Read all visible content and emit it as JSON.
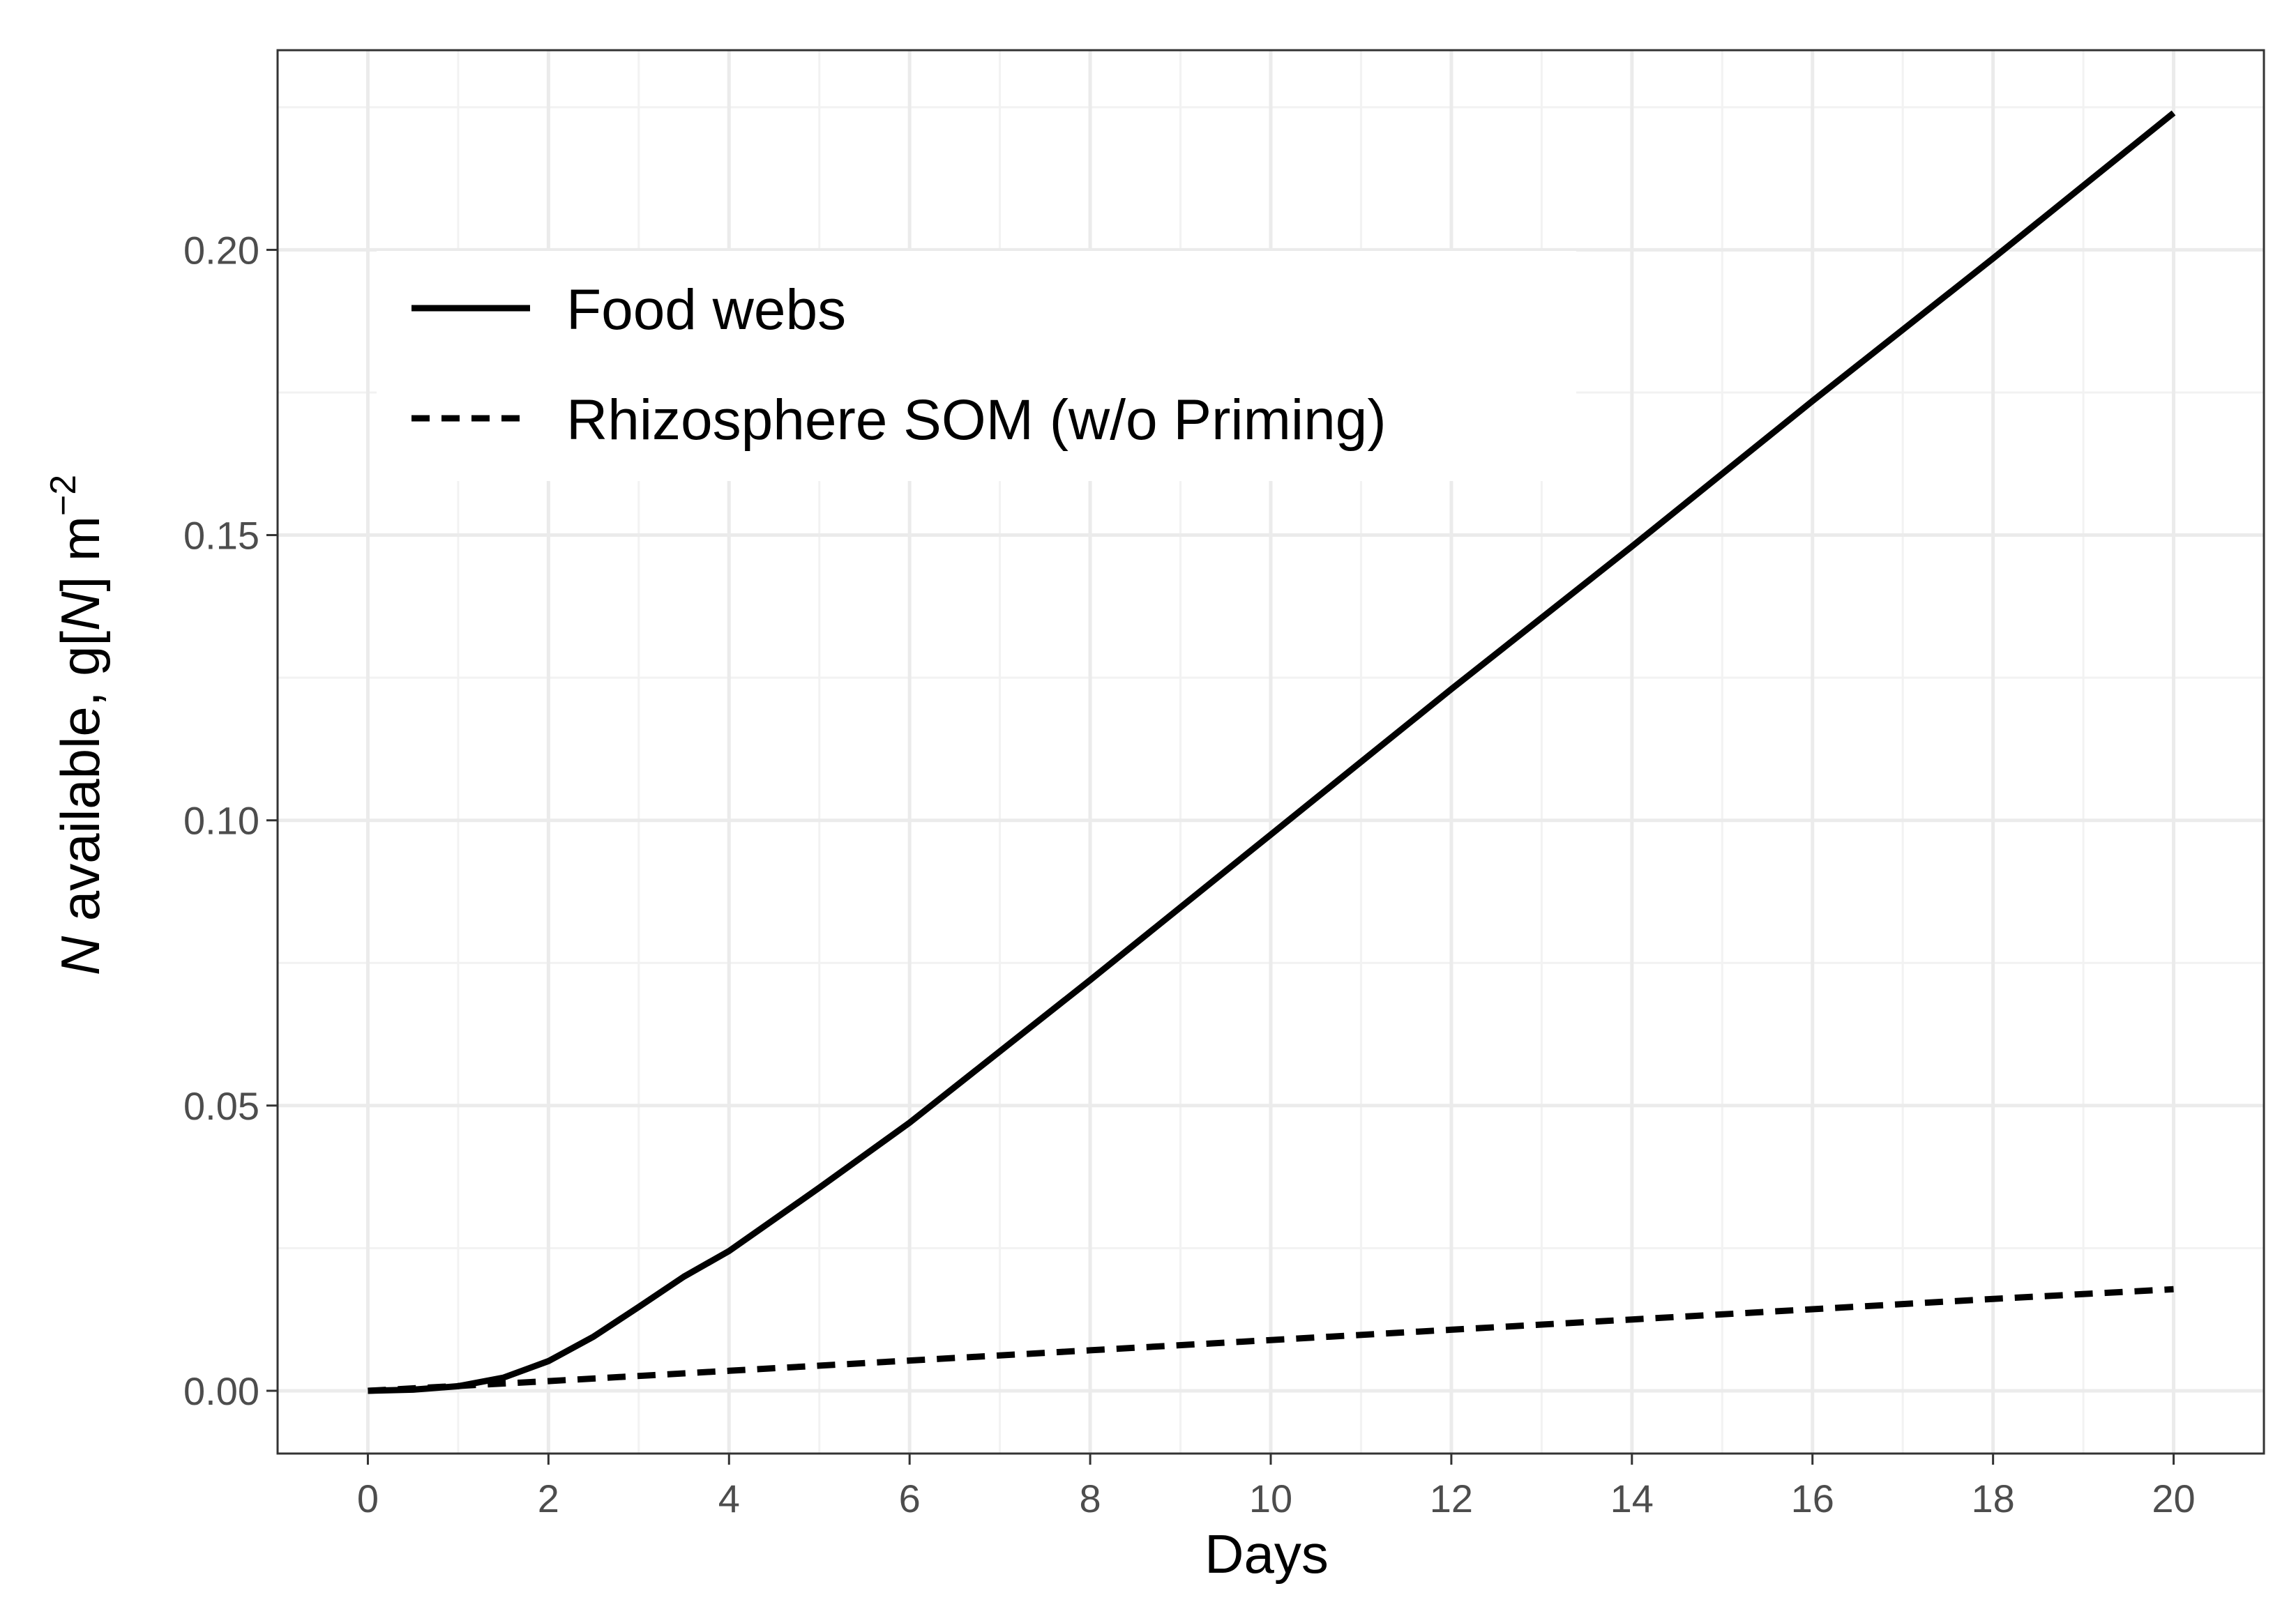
{
  "chart_data": {
    "type": "line",
    "title": "",
    "xlabel": "Days",
    "ylabel": {
      "prefix": "N",
      "middle": " available, g[",
      "unit_letter": "N",
      "suffix": "] m",
      "exponent": "−2"
    },
    "xlim": [
      -1,
      21
    ],
    "ylim": [
      -0.011,
      0.235
    ],
    "x_ticks": [
      0,
      2,
      4,
      6,
      8,
      10,
      12,
      14,
      16,
      18,
      20
    ],
    "x_tick_labels": [
      "0",
      "2",
      "4",
      "6",
      "8",
      "10",
      "12",
      "14",
      "16",
      "18",
      "20"
    ],
    "y_ticks": [
      0.0,
      0.05,
      0.1,
      0.15,
      0.2
    ],
    "y_tick_labels": [
      "0.00",
      "0.05",
      "0.10",
      "0.15",
      "0.20"
    ],
    "grid": true,
    "legend_position": "top-left",
    "series": [
      {
        "name": "Food webs",
        "style": "solid",
        "x": [
          0,
          0.5,
          1,
          1.5,
          2,
          2.5,
          3,
          3.5,
          4,
          5,
          6,
          8,
          10,
          12,
          14,
          16,
          18,
          20
        ],
        "y": [
          0.0,
          0.0002,
          0.0008,
          0.0023,
          0.0052,
          0.0095,
          0.0147,
          0.02,
          0.0245,
          0.0356,
          0.047,
          0.072,
          0.0975,
          0.123,
          0.148,
          0.1735,
          0.1985,
          0.224
        ]
      },
      {
        "name": "Rhizosphere SOM (w/o Priming)",
        "style": "dashed",
        "x": [
          0,
          2,
          4,
          6,
          8,
          10,
          12,
          14,
          16,
          18,
          20
        ],
        "y": [
          0.0,
          0.0017,
          0.0035,
          0.0053,
          0.0071,
          0.0089,
          0.0107,
          0.0125,
          0.0143,
          0.0161,
          0.0178
        ]
      }
    ]
  }
}
